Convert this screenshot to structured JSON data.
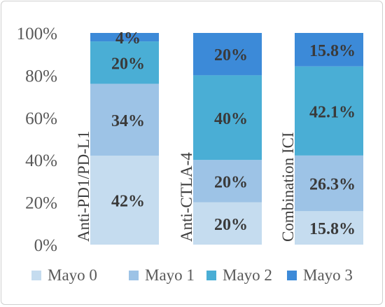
{
  "chart_data": {
    "type": "bar",
    "stacked": true,
    "percent": true,
    "categories": [
      "Anti-PD1/PD-L1",
      "Anti-CTLA-4",
      "Combination ICI"
    ],
    "series": [
      {
        "name": "Mayo 0",
        "values": [
          42,
          20,
          15.8
        ],
        "labels": [
          "42%",
          "20%",
          "15.8%"
        ],
        "color": "#c5dcef"
      },
      {
        "name": "Mayo 1",
        "values": [
          34,
          20,
          26.3
        ],
        "labels": [
          "34%",
          "20%",
          "26.3%"
        ],
        "color": "#9dc3e6"
      },
      {
        "name": "Mayo 2",
        "values": [
          20,
          40,
          42.1
        ],
        "labels": [
          "20%",
          "40%",
          "42.1%"
        ],
        "color": "#4aaed5"
      },
      {
        "name": "Mayo 3",
        "values": [
          4,
          20,
          15.8
        ],
        "labels": [
          "4%",
          "20%",
          "15.8%"
        ],
        "color": "#3c8ad8"
      }
    ],
    "ylim": [
      0,
      100
    ],
    "yticks": [
      "0%",
      "20%",
      "40%",
      "60%",
      "80%",
      "100%"
    ],
    "grid": false,
    "legend": "bottom",
    "xlabel": "",
    "ylabel": "",
    "title": ""
  }
}
